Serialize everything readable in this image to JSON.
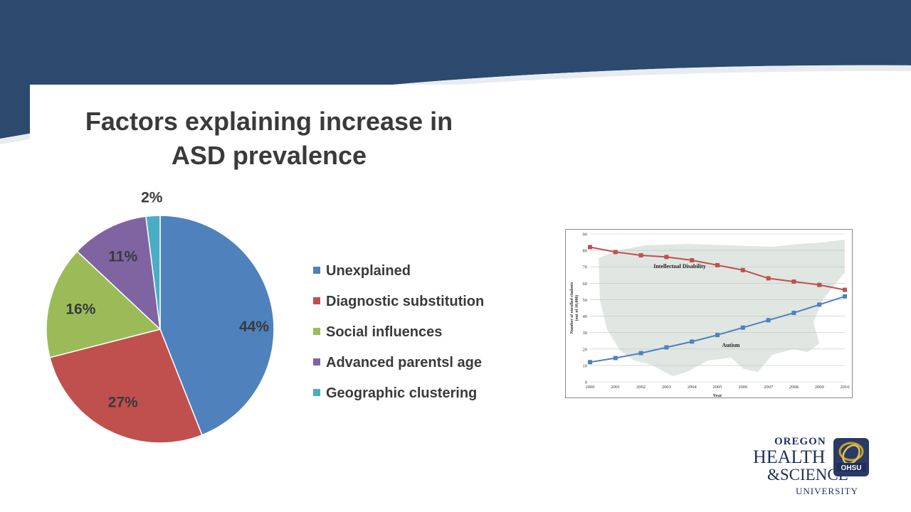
{
  "chart_data": [
    {
      "type": "pie",
      "title": [
        "Factors explaining increase in",
        "ASD prevalence"
      ],
      "slices": [
        {
          "label": "Unexplained",
          "value": 44,
          "display": "44%",
          "color": "#4f81bd"
        },
        {
          "label": "Diagnostic substitution",
          "value": 27,
          "display": "27%",
          "color": "#c0504d"
        },
        {
          "label": "Social influences",
          "value": 16,
          "display": "16%",
          "color": "#9bbb59"
        },
        {
          "label": "Advanced parentsl  age",
          "value": 11,
          "display": "11%",
          "color": "#8064a2"
        },
        {
          "label": "Geographic clustering",
          "value": 2,
          "display": "2%",
          "color": "#4bacc6"
        }
      ],
      "legend_placement": "right"
    },
    {
      "type": "line",
      "xlabel": "Year",
      "ylabel": "Number of enrolled students (out of 10,000)",
      "x": [
        2000,
        2001,
        2002,
        2003,
        2004,
        2005,
        2006,
        2007,
        2008,
        2009,
        2010
      ],
      "ylim": [
        0,
        90
      ],
      "yticks": [
        0,
        10,
        20,
        30,
        40,
        50,
        60,
        70,
        80,
        90
      ],
      "grid": true,
      "background": "map of the United States",
      "series": [
        {
          "name": "Intellectual Disability",
          "color": "#c0504d",
          "values": [
            82,
            79,
            77,
            76,
            74,
            71,
            68,
            63,
            61,
            59,
            56
          ]
        },
        {
          "name": "Autism",
          "color": "#4f81bd",
          "values": [
            12,
            14.5,
            17.5,
            21,
            24.5,
            28.5,
            33,
            37.5,
            42,
            47,
            52
          ]
        }
      ]
    }
  ],
  "logo": {
    "line1": "OREGON",
    "line2": "HEALTH",
    "line3": "&SCIENCE",
    "line4": "UNIVERSITY",
    "badge": "OHSU"
  },
  "colors": {
    "banner": "#2b4a6e",
    "logo_navy": "#1f2f5a",
    "logo_gold": "#c9a227"
  }
}
